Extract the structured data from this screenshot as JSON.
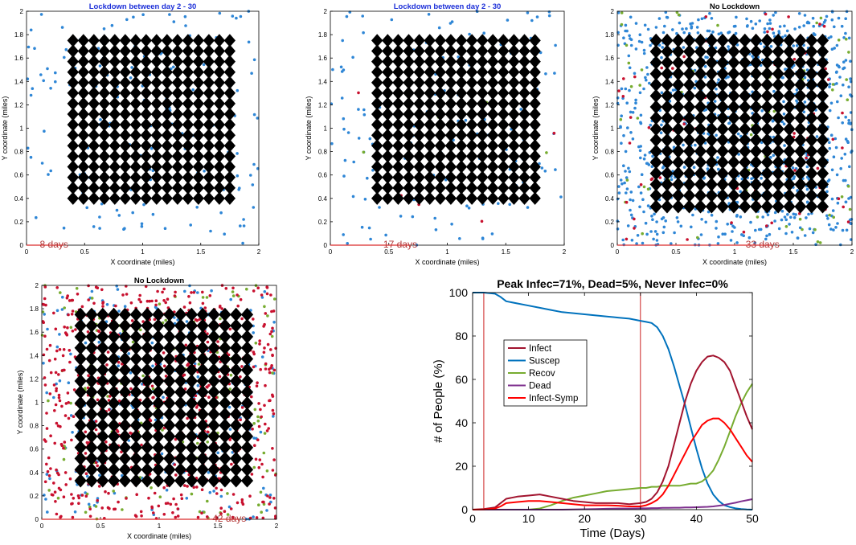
{
  "colors": {
    "susceptible": "#2e86d6",
    "infected": "#c8102e",
    "recovered": "#77ac30",
    "house": "#000000",
    "day_marker": "#d92b2b",
    "title_blue": "#1c2fd8",
    "line_infect": "#a2142f",
    "line_suscep": "#0072bd",
    "line_recov": "#77ac30",
    "line_dead": "#7e2f8e",
    "line_infect_symp": "#ff0000",
    "lockdown_line": "#cc2222"
  },
  "chart_data": [
    {
      "type": "scatter",
      "title": "Lockdown between day 2 - 30",
      "xlabel": "X coordinate (miles)",
      "ylabel": "Y coordinate (miles)",
      "xlim": [
        0,
        2
      ],
      "ylim": [
        0,
        2
      ],
      "xticks": [
        "0",
        "0.5",
        "1",
        "1.5",
        "2"
      ],
      "yticks": [
        "0",
        "0.2",
        "0.4",
        "0.6",
        "0.8",
        "1",
        "1.2",
        "1.4",
        "1.6",
        "1.8",
        "2"
      ],
      "day_label": "8 days",
      "day_value": 8,
      "houses": {
        "grid_start": 0.4,
        "grid_end": 1.75,
        "count": 16
      },
      "people": {
        "susceptible": 150,
        "infected": 0,
        "recovered": 0
      },
      "lockdown": true
    },
    {
      "type": "scatter",
      "title": "Lockdown between day 2 - 30",
      "xlabel": "X coordinate (miles)",
      "ylabel": "Y coordinate (miles)",
      "xlim": [
        0,
        2
      ],
      "ylim": [
        0,
        2
      ],
      "xticks": [
        "0",
        "0.5",
        "1",
        "1.5",
        "2"
      ],
      "yticks": [
        "0",
        "0.2",
        "0.4",
        "0.6",
        "0.8",
        "1",
        "1.2",
        "1.4",
        "1.6",
        "1.8",
        "2"
      ],
      "day_label": "17 days",
      "day_value": 17,
      "houses": {
        "grid_start": 0.4,
        "grid_end": 1.75,
        "count": 16
      },
      "people": {
        "susceptible": 145,
        "infected": 6,
        "recovered": 5
      },
      "lockdown": true
    },
    {
      "type": "scatter",
      "title": "No Lockdown",
      "xlabel": "X coordinate (miles)",
      "ylabel": "Y coordinate (miles)",
      "xlim": [
        0,
        2
      ],
      "ylim": [
        0,
        2
      ],
      "xticks": [
        "0",
        "0.5",
        "1",
        "1.5",
        "2"
      ],
      "yticks": [
        "0",
        "0.2",
        "0.4",
        "0.6",
        "0.8",
        "1",
        "1.2",
        "1.4",
        "1.6",
        "1.8",
        "2"
      ],
      "day_label": "33 days",
      "day_value": 33,
      "houses": {
        "grid_start": 0.33,
        "grid_end": 1.75,
        "count": 16
      },
      "people": {
        "susceptible": 900,
        "infected": 80,
        "recovered": 70
      },
      "lockdown": false
    },
    {
      "type": "scatter",
      "title": "No Lockdown",
      "xlabel": "X coordinate (miles)",
      "ylabel": "Y coordinate (miles)",
      "xlim": [
        0,
        2
      ],
      "ylim": [
        0,
        2
      ],
      "xticks": [
        "0",
        "0.5",
        "1",
        "1.5",
        "2"
      ],
      "yticks": [
        "0",
        "0.2",
        "0.4",
        "0.6",
        "0.8",
        "1",
        "1.2",
        "1.4",
        "1.6",
        "1.8",
        "2"
      ],
      "day_label": "42 days",
      "day_value": 42,
      "houses": {
        "grid_start": 0.33,
        "grid_end": 1.75,
        "count": 16
      },
      "people": {
        "susceptible": 220,
        "infected": 700,
        "recovered": 150
      },
      "lockdown": false
    },
    {
      "type": "line",
      "title": "Peak Infec=71%, Dead=5%, Never Infec=0%",
      "xlabel": "Time (Days)",
      "ylabel": "# of People (%)",
      "xlim": [
        0,
        50
      ],
      "ylim": [
        0,
        100
      ],
      "xticks": [
        "0",
        "10",
        "20",
        "30",
        "40",
        "50"
      ],
      "yticks": [
        "0",
        "20",
        "40",
        "60",
        "80",
        "100"
      ],
      "vlines": [
        2,
        30
      ],
      "legend": {
        "position": "upper-left",
        "entries": [
          "Infect",
          "Suscep",
          "Recov",
          "Dead",
          "Infect-Symp"
        ]
      },
      "x": [
        0,
        2,
        4,
        5,
        6,
        8,
        10,
        12,
        14,
        16,
        18,
        20,
        22,
        24,
        26,
        28,
        30,
        31,
        32,
        33,
        34,
        35,
        36,
        37,
        38,
        39,
        40,
        41,
        42,
        43,
        44,
        45,
        46,
        47,
        48,
        49,
        50
      ],
      "series": [
        {
          "name": "Infect",
          "values": [
            0,
            0.3,
            1,
            3,
            5,
            6,
            6.5,
            7,
            6,
            5,
            4,
            3.5,
            3,
            3,
            3,
            2.5,
            3,
            3.5,
            5,
            8,
            13,
            20,
            30,
            40,
            50,
            58,
            64,
            68,
            70.5,
            71,
            70,
            68,
            64,
            57,
            50,
            43,
            37
          ]
        },
        {
          "name": "Suscep",
          "values": [
            100,
            100,
            99.5,
            98,
            96,
            95,
            94,
            93,
            92,
            91,
            90.5,
            90,
            89.5,
            89,
            88.5,
            88,
            87,
            86.5,
            86,
            84,
            80,
            74,
            66,
            57,
            48,
            38,
            28,
            19,
            12,
            7,
            4,
            2,
            1.2,
            0.6,
            0.3,
            0.1,
            0
          ]
        },
        {
          "name": "Recov",
          "values": [
            0,
            0,
            0,
            0,
            0,
            0,
            0,
            0.5,
            2,
            4,
            5.5,
            6.5,
            7.5,
            8.5,
            9,
            9.5,
            10,
            10,
            10.5,
            10.5,
            11,
            11,
            11,
            11,
            11.5,
            12,
            12,
            13,
            15,
            18,
            23,
            29,
            36,
            43,
            49,
            54,
            58
          ]
        },
        {
          "name": "Dead",
          "values": [
            0,
            0,
            0,
            0,
            0,
            0,
            0,
            0,
            0,
            0,
            0.1,
            0.2,
            0.3,
            0.4,
            0.5,
            0.5,
            0.6,
            0.6,
            0.7,
            0.7,
            0.8,
            0.8,
            0.9,
            0.9,
            1,
            1,
            1.1,
            1.2,
            1.3,
            1.5,
            1.8,
            2.2,
            2.7,
            3.2,
            3.8,
            4.3,
            4.8
          ]
        },
        {
          "name": "Infect-Symp",
          "values": [
            0,
            0.1,
            0.5,
            1.5,
            3,
            3.5,
            4,
            4,
            3.5,
            3,
            2.5,
            2,
            2,
            2,
            1.8,
            1.5,
            1.5,
            2,
            3,
            4.5,
            7,
            11,
            16,
            21,
            26,
            31,
            35,
            39,
            41,
            42,
            42,
            40,
            37,
            33,
            29,
            25,
            22
          ]
        }
      ]
    }
  ]
}
